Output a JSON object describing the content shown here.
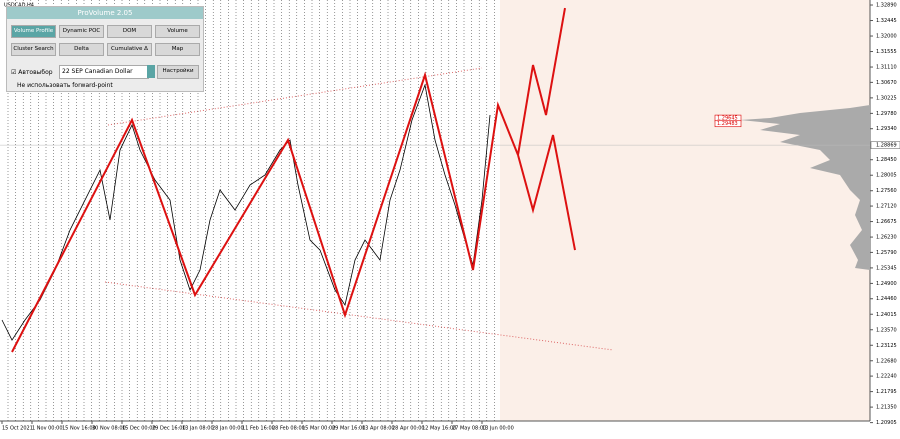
{
  "chart_data": {
    "type": "line",
    "title": "USDCAD,H4",
    "xlim": [
      0,
      870
    ],
    "ylim": [
      1.20693,
      1.33034
    ],
    "xticks": [
      {
        "value": 2,
        "label": "15 Oct 2021"
      },
      {
        "value": 32,
        "label": "1 Nov 00:00"
      },
      {
        "value": 62,
        "label": "15 Nov 16:00"
      },
      {
        "value": 92,
        "label": "30 Nov 08:00"
      },
      {
        "value": 122,
        "label": "15 Dec 00:00"
      },
      {
        "value": 152,
        "label": "29 Dec 16:00"
      },
      {
        "value": 182,
        "label": "13 Jan 08:00"
      },
      {
        "value": 212,
        "label": "28 Jan 00:00"
      },
      {
        "value": 242,
        "label": "11 Feb 16:00"
      },
      {
        "value": 272,
        "label": "28 Feb 08:00"
      },
      {
        "value": 302,
        "label": "15 Mar 00:00"
      },
      {
        "value": 332,
        "label": "29 Mar 16:00"
      },
      {
        "value": 362,
        "label": "13 Apr 08:00"
      },
      {
        "value": 392,
        "label": "28 Apr 00:00"
      },
      {
        "value": 422,
        "label": "12 May 16:00"
      },
      {
        "value": 452,
        "label": "27 May 08:00"
      },
      {
        "value": 482,
        "label": "13 Jun 00:00"
      }
    ],
    "yticks": [
      {
        "value": 1.3289,
        "label": "1.32890"
      },
      1.32445,
      {
        "value": 1.32,
        "label": "1.32000"
      },
      1.31555,
      {
        "value": 1.3111,
        "label": "1.31110"
      },
      {
        "value": 1.3067,
        "label": "1.30670"
      },
      1.30225,
      {
        "value": 1.2978,
        "label": "1.29780"
      },
      {
        "value": 1.2934,
        "label": "1.29340"
      },
      {
        "value": 1.2845,
        "label": "1.28450"
      },
      1.28005,
      {
        "value": 1.2756,
        "label": "1.27560"
      },
      {
        "value": 1.2712,
        "label": "1.27120"
      },
      1.26675,
      {
        "value": 1.2623,
        "label": "1.26230"
      },
      {
        "value": 1.2579,
        "label": "1.25790"
      },
      1.25345,
      {
        "value": 1.249,
        "label": "1.24900"
      },
      {
        "value": 1.2446,
        "label": "1.24460"
      },
      1.24015,
      {
        "value": 1.2357,
        "label": "1.23570"
      },
      1.23125,
      {
        "value": 1.2268,
        "label": "1.22680"
      },
      {
        "value": 1.2224,
        "label": "1.22240"
      },
      1.21795,
      {
        "value": 1.2135,
        "label": "1.21350"
      },
      1.20905
    ],
    "current_price": 1.28869,
    "series": [
      {
        "name": "USDCAD",
        "color": "#000000",
        "x": [
          2,
          12,
          25,
          40,
          55,
          70,
          85,
          100,
          110,
          120,
          132,
          140,
          155,
          170,
          180,
          190,
          200,
          210,
          220,
          235,
          250,
          265,
          280,
          290,
          298,
          310,
          320,
          335,
          345,
          355,
          365,
          380,
          390,
          400,
          412,
          425,
          435,
          445,
          455,
          465,
          473,
          482,
          490
        ],
        "values": [
          1.2385,
          1.23275,
          1.2385,
          1.24423,
          1.25284,
          1.26432,
          1.27293,
          1.28154,
          1.2672,
          1.28728,
          1.29446,
          1.28728,
          1.27867,
          1.27293,
          1.25571,
          1.2471,
          1.25284,
          1.2672,
          1.2758,
          1.27006,
          1.27724,
          1.28011,
          1.28728,
          1.29015,
          1.27724,
          1.26145,
          1.25858,
          1.2471,
          1.2428,
          1.25571,
          1.26145,
          1.25571,
          1.27293,
          1.28154,
          1.2959,
          1.30594,
          1.29015,
          1.28011,
          1.2715,
          1.26145,
          1.25428,
          1.27293,
          1.29733
        ]
      },
      {
        "name": "ZigZag",
        "color": "#dd1111",
        "x": [
          12,
          132,
          195,
          288,
          345,
          425,
          473,
          498,
          518
        ],
        "values": [
          1.22931,
          1.2959,
          1.24567,
          1.29015,
          1.23993,
          1.30881,
          1.25284,
          1.3002,
          1.28585
        ]
      },
      {
        "name": "Forecast up",
        "color": "#dd1111",
        "x": [
          518,
          533,
          546,
          565
        ],
        "values": [
          1.28585,
          1.31168,
          1.29733,
          1.32804
        ]
      },
      {
        "name": "Forecast down",
        "color": "#dd1111",
        "x": [
          518,
          533,
          553,
          575
        ],
        "values": [
          1.28585,
          1.27006,
          1.29159,
          1.25858
        ]
      }
    ],
    "level_labels": [
      {
        "value": 1.29645,
        "label": "1.29645"
      },
      {
        "value": 1.29483,
        "label": "1.29483"
      }
    ]
  },
  "panel": {
    "title": "ProVolume 2.05",
    "buttons": [
      "Volume Profile",
      "Dynamic POC",
      "DOM",
      "Volume",
      "Cluster Search",
      "Delta",
      "Cumulative Δ",
      "Map"
    ],
    "auto_select": "Автовыбор",
    "instrument": "22 SEP Canadian Dollar",
    "settings": "Настройки",
    "forward_point": "Не использовать forward-point"
  }
}
